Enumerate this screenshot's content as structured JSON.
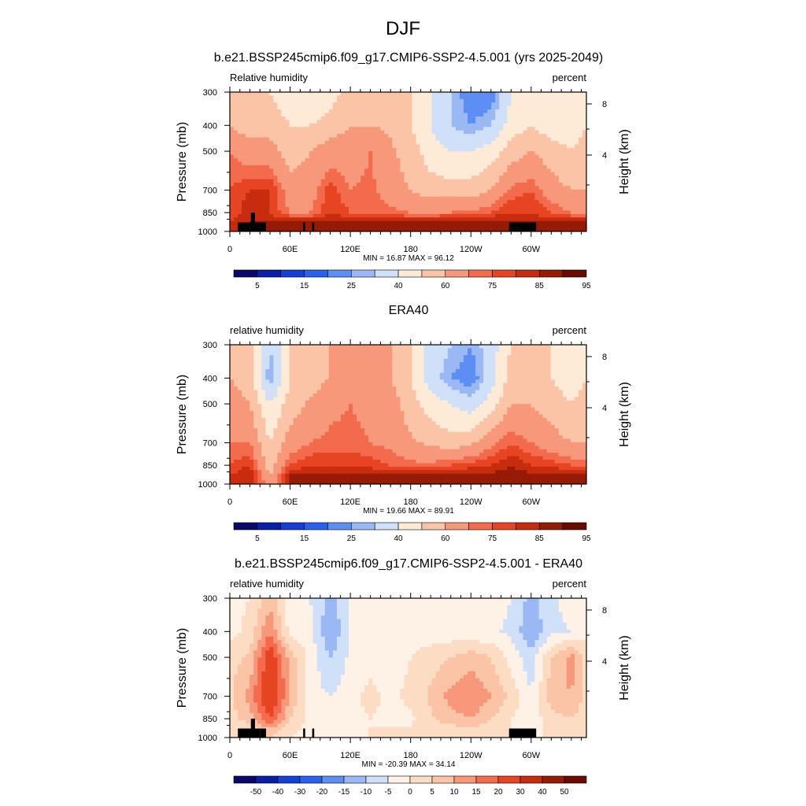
{
  "figure_title": "DJF",
  "panels": [
    {
      "title": "b.e21.BSSP245cmip6.f09_g17.CMIP6-SSP2-4.5.001 (yrs 2025-2049)",
      "left_label": "Relative humidity",
      "right_label": "percent",
      "ylabel": "Pressure (mb)",
      "ylabel_right": "Height (km)",
      "stats": "MIN =  16.87  MAX =  96.12"
    },
    {
      "title": "ERA40",
      "left_label": "relative humidity",
      "right_label": "percent",
      "ylabel": "Pressure (mb)",
      "ylabel_right": "Height (km)",
      "stats": "MIN =  19.66  MAX =  89.91"
    },
    {
      "title": "b.e21.BSSP245cmip6.f09_g17.CMIP6-SSP2-4.5.001 - ERA40",
      "left_label": "relative humidity",
      "right_label": "percent",
      "ylabel": "Pressure (mb)",
      "ylabel_right": "Height (km)",
      "stats": "MIN = -20.39  MAX =  34.14"
    }
  ],
  "colors": {
    "abs_scale": [
      "#08086a",
      "#0a1fa8",
      "#1540d8",
      "#2a62f0",
      "#5c8ef3",
      "#9ab8f4",
      "#cfe0f8",
      "#fdebd8",
      "#fcc4a6",
      "#f7987a",
      "#f36b4c",
      "#e64422",
      "#c72c0e",
      "#961b04",
      "#6b0a00"
    ],
    "diff_scale": [
      "#08086a",
      "#0a1fa8",
      "#1540d8",
      "#2a62f0",
      "#5c8ef3",
      "#9ab8f4",
      "#cfe0f8",
      "#fef1e6",
      "#fddcc4",
      "#fcc4a6",
      "#f7987a",
      "#f36b4c",
      "#e64422",
      "#c72c0e",
      "#961b04",
      "#6b0a00"
    ],
    "terrain": "#000000"
  },
  "chart_data": [
    {
      "type": "heatmap",
      "title": "b.e21.BSSP245cmip6.f09_g17.CMIP6-SSP2-4.5.001 (yrs 2025-2049)",
      "variable": "Relative humidity",
      "units": "percent",
      "xlabel": "",
      "ylabel": "Pressure (mb)",
      "ylabel_right": "Height (km)",
      "x_ticks": [
        "0",
        "60E",
        "120E",
        "180",
        "120W",
        "60W"
      ],
      "x_tick_lon": [
        0,
        60,
        120,
        180,
        240,
        300
      ],
      "xlim": [
        0,
        355
      ],
      "y_ticks": [
        300,
        400,
        500,
        700,
        850,
        1000
      ],
      "ylim": [
        1000,
        300
      ],
      "y_right_ticks": [
        4,
        8
      ],
      "colorbar": {
        "labels": [
          "5",
          "15",
          "25",
          "40",
          "60",
          "75",
          "85",
          "95"
        ],
        "levels": [
          5,
          10,
          15,
          20,
          25,
          30,
          40,
          50,
          60,
          70,
          75,
          80,
          85,
          90,
          95
        ]
      },
      "min": 16.87,
      "max": 96.12,
      "lon": [
        0,
        20,
        40,
        60,
        80,
        100,
        120,
        140,
        160,
        180,
        200,
        220,
        240,
        260,
        280,
        300,
        320,
        340,
        355
      ],
      "levels_mb": [
        300,
        400,
        500,
        700,
        850,
        925,
        1000
      ],
      "values": [
        [
          60,
          55,
          50,
          45,
          40,
          45,
          55,
          58,
          60,
          50,
          40,
          30,
          20,
          20,
          40,
          50,
          45,
          40,
          50
        ],
        [
          60,
          55,
          55,
          50,
          50,
          55,
          60,
          60,
          58,
          50,
          40,
          30,
          25,
          30,
          45,
          50,
          45,
          45,
          50
        ],
        [
          70,
          65,
          65,
          55,
          60,
          65,
          65,
          70,
          62,
          55,
          45,
          40,
          40,
          45,
          55,
          60,
          55,
          50,
          55
        ],
        [
          75,
          80,
          80,
          65,
          65,
          78,
          70,
          72,
          65,
          60,
          55,
          55,
          55,
          60,
          72,
          75,
          65,
          60,
          60
        ],
        [
          75,
          85,
          80,
          70,
          70,
          80,
          75,
          75,
          72,
          70,
          70,
          70,
          72,
          75,
          80,
          80,
          75,
          70,
          70
        ],
        [
          80,
          85,
          85,
          85,
          85,
          85,
          85,
          85,
          85,
          85,
          85,
          87,
          90,
          90,
          85,
          85,
          85,
          85,
          85
        ],
        [
          80,
          85,
          85,
          85,
          85,
          85,
          85,
          85,
          85,
          85,
          85,
          85,
          85,
          85,
          85,
          85,
          85,
          85,
          85
        ]
      ],
      "terrain": [
        [
          8,
          28,
          925
        ],
        [
          21,
          25,
          850
        ],
        [
          28,
          36,
          925
        ],
        [
          73,
          75,
          925
        ],
        [
          82,
          84,
          925
        ],
        [
          278,
          305,
          925
        ]
      ]
    },
    {
      "type": "heatmap",
      "title": "ERA40",
      "variable": "relative humidity",
      "units": "percent",
      "xlabel": "",
      "ylabel": "Pressure (mb)",
      "ylabel_right": "Height (km)",
      "x_ticks": [
        "0",
        "60E",
        "120E",
        "180",
        "120W",
        "60W"
      ],
      "x_tick_lon": [
        0,
        60,
        120,
        180,
        240,
        300
      ],
      "xlim": [
        0,
        355
      ],
      "y_ticks": [
        300,
        400,
        500,
        700,
        850,
        1000
      ],
      "ylim": [
        1000,
        300
      ],
      "y_right_ticks": [
        4,
        8
      ],
      "colorbar": {
        "labels": [
          "5",
          "15",
          "25",
          "40",
          "60",
          "75",
          "85",
          "95"
        ],
        "levels": [
          5,
          10,
          15,
          20,
          25,
          30,
          40,
          50,
          60,
          70,
          75,
          80,
          85,
          90,
          95
        ]
      },
      "min": 19.66,
      "max": 89.91,
      "lon": [
        0,
        20,
        40,
        60,
        80,
        100,
        120,
        140,
        160,
        180,
        200,
        220,
        240,
        260,
        280,
        300,
        320,
        340,
        355
      ],
      "levels_mb": [
        300,
        400,
        500,
        700,
        850,
        925,
        1000
      ],
      "values": [
        [
          60,
          55,
          30,
          50,
          55,
          60,
          60,
          60,
          60,
          50,
          35,
          30,
          25,
          35,
          50,
          55,
          50,
          45,
          50
        ],
        [
          60,
          55,
          25,
          50,
          55,
          60,
          65,
          62,
          60,
          50,
          35,
          25,
          20,
          35,
          55,
          55,
          50,
          45,
          50
        ],
        [
          65,
          60,
          40,
          55,
          62,
          68,
          70,
          68,
          65,
          55,
          45,
          40,
          35,
          45,
          60,
          60,
          55,
          50,
          55
        ],
        [
          70,
          70,
          50,
          65,
          70,
          72,
          72,
          70,
          68,
          62,
          58,
          55,
          58,
          68,
          75,
          70,
          65,
          60,
          60
        ],
        [
          75,
          80,
          55,
          75,
          80,
          80,
          80,
          78,
          75,
          72,
          72,
          75,
          78,
          80,
          85,
          80,
          78,
          75,
          75
        ],
        [
          80,
          85,
          60,
          85,
          87,
          87,
          87,
          85,
          85,
          85,
          85,
          85,
          85,
          87,
          88,
          87,
          87,
          85,
          85
        ],
        [
          80,
          85,
          65,
          85,
          85,
          85,
          85,
          85,
          85,
          85,
          85,
          85,
          85,
          85,
          85,
          85,
          85,
          85,
          85
        ]
      ],
      "terrain": []
    },
    {
      "type": "heatmap",
      "title": "b.e21.BSSP245cmip6.f09_g17.CMIP6-SSP2-4.5.001 - ERA40",
      "variable": "relative humidity",
      "units": "percent",
      "xlabel": "",
      "ylabel": "Pressure (mb)",
      "ylabel_right": "Height (km)",
      "x_ticks": [
        "0",
        "60E",
        "120E",
        "180",
        "120W",
        "60W"
      ],
      "x_tick_lon": [
        0,
        60,
        120,
        180,
        240,
        300
      ],
      "xlim": [
        0,
        355
      ],
      "y_ticks": [
        300,
        400,
        500,
        700,
        850,
        1000
      ],
      "ylim": [
        1000,
        300
      ],
      "y_right_ticks": [
        4,
        8
      ],
      "colorbar": {
        "labels": [
          "-50",
          "-40",
          "-30",
          "-20",
          "-15",
          "-10",
          "-5",
          "0",
          "5",
          "10",
          "15",
          "20",
          "30",
          "40",
          "50"
        ],
        "levels": [
          -50,
          -40,
          -30,
          -20,
          -15,
          -10,
          -5,
          0,
          5,
          10,
          15,
          20,
          30,
          40,
          50
        ]
      },
      "min": -20.39,
      "max": 34.14,
      "lon": [
        0,
        20,
        40,
        60,
        80,
        100,
        120,
        140,
        160,
        180,
        200,
        220,
        240,
        260,
        280,
        300,
        320,
        340,
        355
      ],
      "levels_mb": [
        300,
        400,
        500,
        700,
        850,
        925,
        1000
      ],
      "values": [
        [
          -2,
          0,
          8,
          -3,
          -5,
          -12,
          -5,
          -2,
          -3,
          -2,
          -3,
          -4,
          -5,
          -3,
          -5,
          -12,
          -6,
          -3,
          -2
        ],
        [
          -2,
          2,
          15,
          -2,
          -3,
          -15,
          -5,
          -3,
          -4,
          -2,
          -3,
          -3,
          -4,
          -4,
          -6,
          -15,
          -6,
          -5,
          -2
        ],
        [
          3,
          6,
          25,
          8,
          -2,
          -10,
          -4,
          -2,
          -3,
          0,
          3,
          5,
          8,
          5,
          -2,
          -8,
          5,
          12,
          3
        ],
        [
          4,
          12,
          28,
          10,
          -3,
          -5,
          -2,
          2,
          -2,
          2,
          6,
          12,
          15,
          10,
          4,
          -5,
          8,
          10,
          3
        ],
        [
          2,
          8,
          20,
          5,
          -2,
          -3,
          -2,
          0,
          -2,
          -1,
          4,
          8,
          10,
          5,
          0,
          -3,
          3,
          5,
          2
        ],
        [
          0,
          3,
          10,
          2,
          -2,
          -3,
          -2,
          0,
          0,
          0,
          2,
          3,
          4,
          2,
          0,
          -2,
          1,
          2,
          0
        ],
        [
          0,
          2,
          5,
          0,
          -2,
          -3,
          -2,
          0,
          0,
          0,
          0,
          2,
          2,
          0,
          0,
          0,
          0,
          2,
          0
        ]
      ],
      "terrain": [
        [
          8,
          30,
          925
        ],
        [
          21,
          25,
          850
        ],
        [
          30,
          36,
          925
        ],
        [
          73,
          75,
          925
        ],
        [
          82,
          84,
          925
        ],
        [
          278,
          305,
          925
        ]
      ]
    }
  ]
}
